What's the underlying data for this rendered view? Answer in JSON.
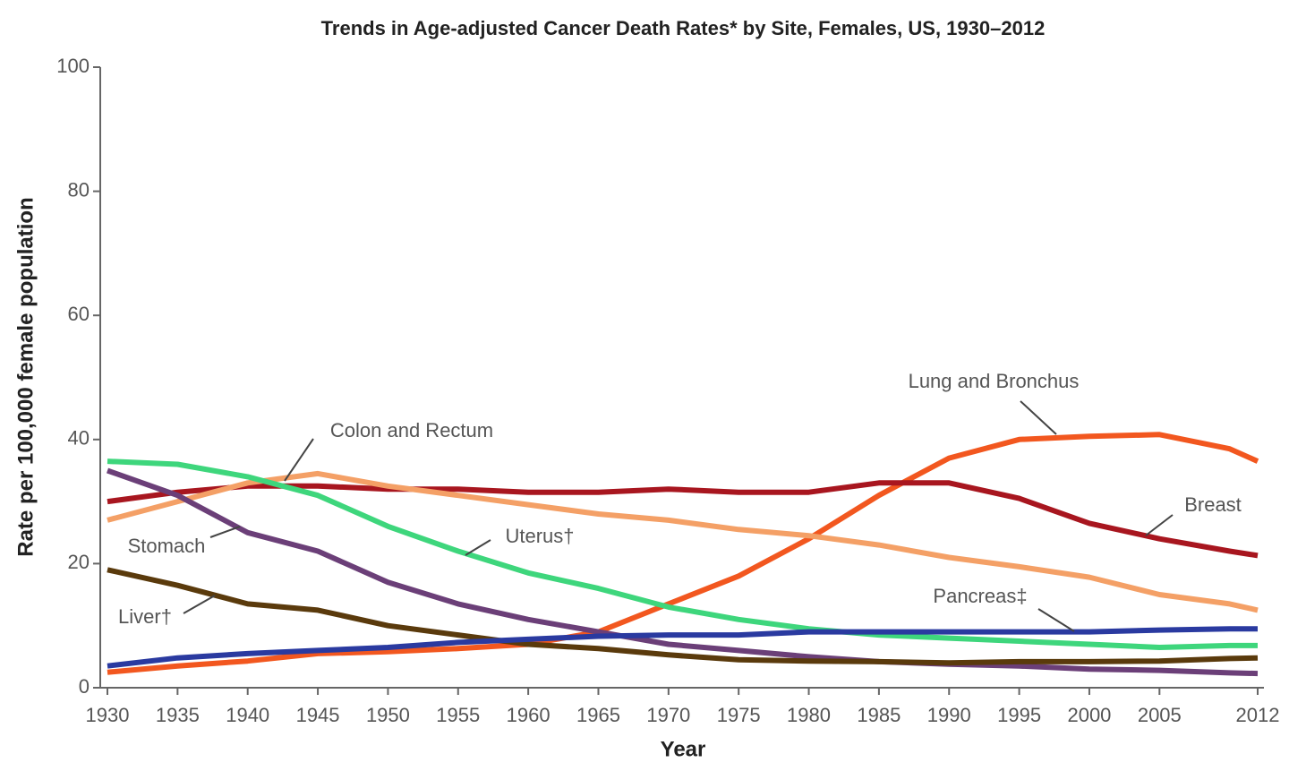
{
  "chart_data": {
    "type": "line",
    "title": "Trends in Age-adjusted Cancer Death Rates* by Site, Females, US, 1930–2012",
    "xlabel": "Year",
    "ylabel": "Rate per 100,000 female population",
    "x": [
      1930,
      1935,
      1940,
      1945,
      1950,
      1955,
      1960,
      1965,
      1970,
      1975,
      1980,
      1985,
      1990,
      1995,
      2000,
      2005,
      2010,
      2012
    ],
    "xlim": [
      1930,
      2012
    ],
    "xticks": [
      1930,
      1935,
      1940,
      1945,
      1950,
      1955,
      1960,
      1965,
      1970,
      1975,
      1980,
      1985,
      1990,
      1995,
      2000,
      2005,
      2012
    ],
    "ylim": [
      0,
      100
    ],
    "yticks": [
      0,
      20,
      40,
      60,
      80,
      100
    ],
    "series": [
      {
        "name": "Lung and Bronchus",
        "color": "#f2571f",
        "values": [
          2.5,
          3.5,
          4.3,
          5.5,
          5.8,
          6.3,
          7,
          9,
          13.5,
          18,
          24,
          31,
          37,
          40,
          40.5,
          40.8,
          38.5,
          36.5
        ]
      },
      {
        "name": "Breast",
        "color": "#a8161f",
        "values": [
          30,
          31.5,
          32.5,
          32.5,
          32,
          32,
          31.5,
          31.5,
          32,
          31.5,
          31.5,
          33,
          33,
          30.5,
          26.5,
          24,
          22,
          21.3
        ]
      },
      {
        "name": "Colon and Rectum",
        "color": "#f4a066",
        "values": [
          27,
          30,
          33,
          34.5,
          32.5,
          31,
          29.5,
          28,
          27,
          25.5,
          24.5,
          23,
          21,
          19.5,
          17.8,
          15,
          13.5,
          12.5
        ]
      },
      {
        "name": "Stomach",
        "color": "#6b3f78",
        "values": [
          35,
          31,
          25,
          22,
          17,
          13.5,
          11,
          9,
          7,
          6,
          5,
          4.2,
          3.8,
          3.5,
          3,
          2.8,
          2.4,
          2.3
        ]
      },
      {
        "name": "Uterus†",
        "color": "#3ed67c",
        "values": [
          36.5,
          36,
          34,
          31,
          26,
          22,
          18.5,
          16,
          13,
          11,
          9.5,
          8.5,
          8,
          7.5,
          7,
          6.5,
          6.8,
          6.8
        ]
      },
      {
        "name": "Liver†",
        "color": "#5a3a0c",
        "values": [
          19,
          16.5,
          13.5,
          12.5,
          10,
          8.5,
          7,
          6.3,
          5.3,
          4.5,
          4.3,
          4.2,
          4,
          4.2,
          4.2,
          4.3,
          4.7,
          4.8
        ]
      },
      {
        "name": "Pancreas‡",
        "color": "#2a3aa0",
        "values": [
          3.5,
          4.8,
          5.5,
          6,
          6.5,
          7.3,
          7.8,
          8.3,
          8.5,
          8.5,
          9,
          9,
          9,
          9,
          9,
          9.3,
          9.5,
          9.5
        ]
      }
    ]
  }
}
